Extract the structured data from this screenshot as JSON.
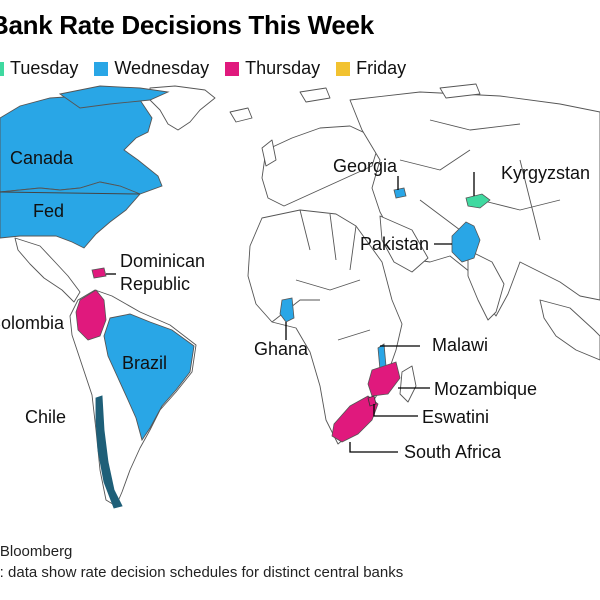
{
  "title": "Bank Rate Decisions This Week",
  "legend": [
    {
      "label": "Tuesday",
      "color": "#3fd9a0"
    },
    {
      "label": "Wednesday",
      "color": "#29a6e6"
    },
    {
      "label": "Thursday",
      "color": "#e0197d"
    },
    {
      "label": "Friday",
      "color": "#f2c230"
    }
  ],
  "labels": {
    "canada": "Canada",
    "fed": "Fed",
    "dominican_line1": "Dominican",
    "dominican_line2": "Republic",
    "colombia": "Colombia",
    "brazil": "Brazil",
    "chile": "Chile",
    "ghana": "Ghana",
    "georgia": "Georgia",
    "kyrgyzstan": "Kyrgyzstan",
    "pakistan": "Pakistan",
    "malawi": "Malawi",
    "mozambique": "Mozambique",
    "eswatini": "Eswatini",
    "south_africa": "South Africa"
  },
  "colors": {
    "land": "#ffffff",
    "border": "#555555",
    "wednesday": "#29a6e6",
    "thursday": "#e0197d",
    "tuesday": "#3fd9a0",
    "dark_teal": "#1e5f78"
  },
  "footnote": {
    "source": "Source: Bloomberg",
    "note": "Note: data show rate decision schedules for distinct central banks"
  }
}
